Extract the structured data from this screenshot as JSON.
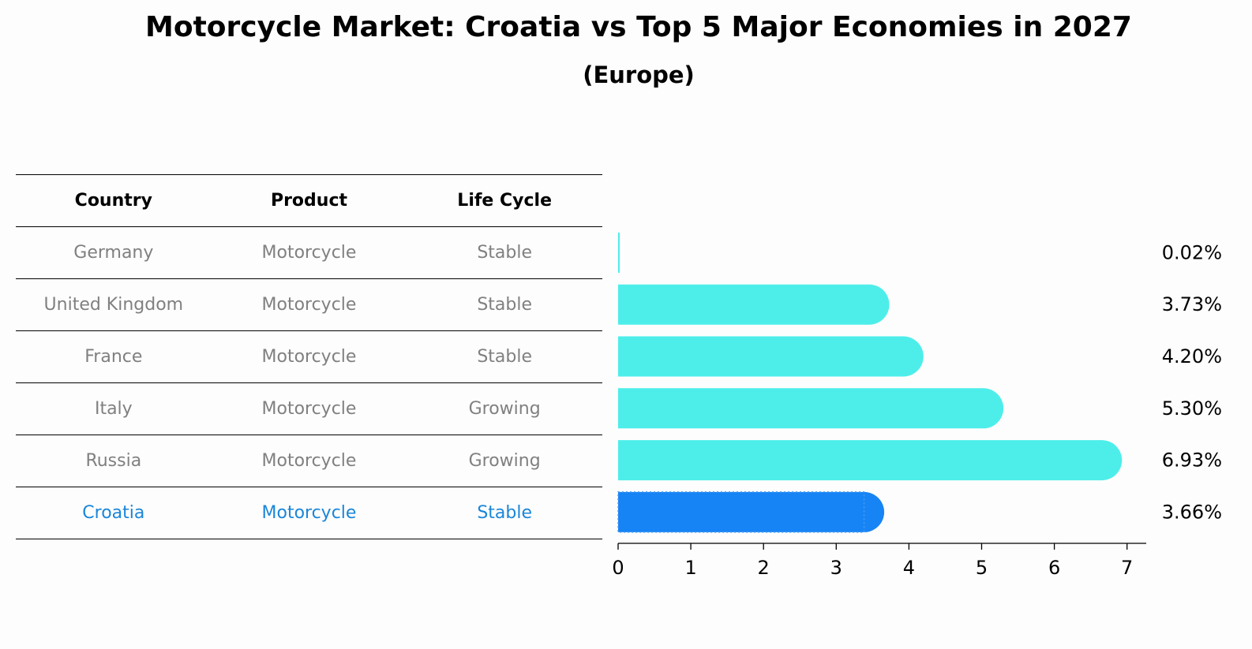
{
  "title": "Motorcycle Market: Croatia vs Top 5 Major Economies in 2027",
  "subtitle": "(Europe)",
  "table": {
    "headers": [
      "Country",
      "Product",
      "Life Cycle"
    ],
    "rows": [
      {
        "country": "Germany",
        "product": "Motorcycle",
        "life_cycle": "Stable"
      },
      {
        "country": "United Kingdom",
        "product": "Motorcycle",
        "life_cycle": "Stable"
      },
      {
        "country": "France",
        "product": "Motorcycle",
        "life_cycle": "Stable"
      },
      {
        "country": "Italy",
        "product": "Motorcycle",
        "life_cycle": "Growing"
      },
      {
        "country": "Russia",
        "product": "Motorcycle",
        "life_cycle": "Growing"
      },
      {
        "country": "Croatia",
        "product": "Motorcycle",
        "life_cycle": "Stable"
      }
    ]
  },
  "colors": {
    "bar": "#4deeea",
    "highlight_bar": "#1784f5",
    "highlight_text": "#1a86d9",
    "row_text": "#808080"
  },
  "chart_data": {
    "type": "bar",
    "orientation": "horizontal",
    "categories": [
      "Germany",
      "United Kingdom",
      "France",
      "Italy",
      "Russia",
      "Croatia"
    ],
    "values": [
      0.02,
      3.73,
      4.2,
      5.3,
      6.93,
      3.66
    ],
    "value_labels": [
      "0.02%",
      "3.73%",
      "4.20%",
      "5.30%",
      "6.93%",
      "3.66%"
    ],
    "highlight": "Croatia",
    "xlim": [
      0,
      7.3
    ],
    "xticks": [
      "0",
      "1",
      "2",
      "3",
      "4",
      "5",
      "6",
      "7"
    ],
    "grid": false
  }
}
